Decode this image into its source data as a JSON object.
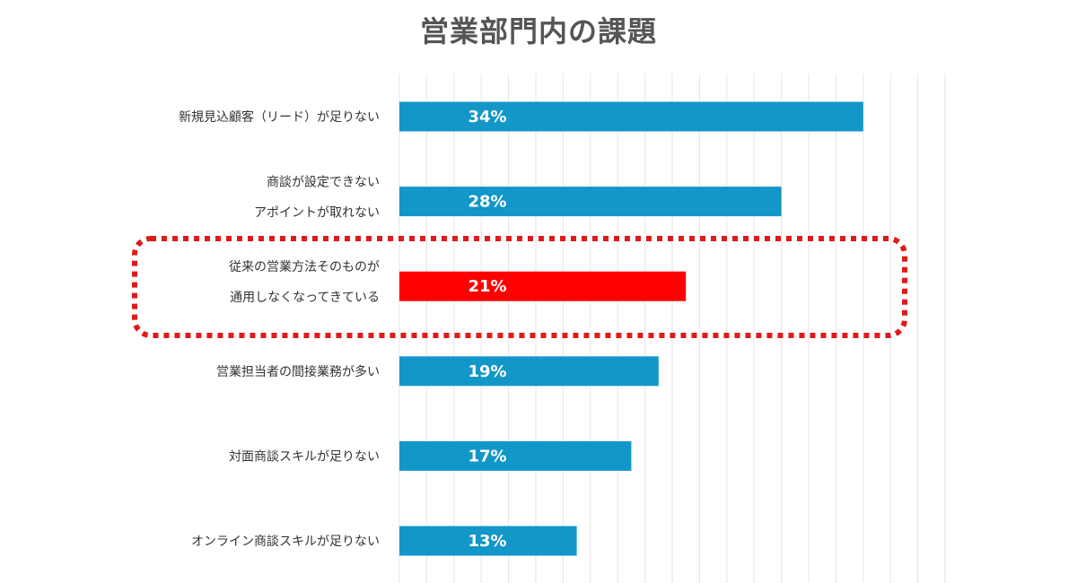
{
  "chart_data": {
    "type": "bar",
    "orientation": "horizontal",
    "title": "営業部門内の課題",
    "categories": [
      [
        "新規見込顧客（リード）が足りない"
      ],
      [
        "商談が設定できない",
        "アポイントが取れない"
      ],
      [
        "従来の営業方法そのものが",
        "通用しなくなってきている"
      ],
      [
        "営業担当者の間接業務が多い"
      ],
      [
        "対面商談スキルが足りない"
      ],
      [
        "オンライン商談スキルが足りない"
      ]
    ],
    "values": [
      34,
      28,
      21,
      19,
      17,
      13
    ],
    "value_labels": [
      "34%",
      "28%",
      "21%",
      "19%",
      "17%",
      "13%"
    ],
    "xlim": [
      0,
      40
    ],
    "grid": true,
    "highlight_index": 2,
    "colors": {
      "bar": "#1297c8",
      "highlight": "#ff0000",
      "frame": "#e01a1a",
      "grid": "#e6e6e6"
    }
  }
}
